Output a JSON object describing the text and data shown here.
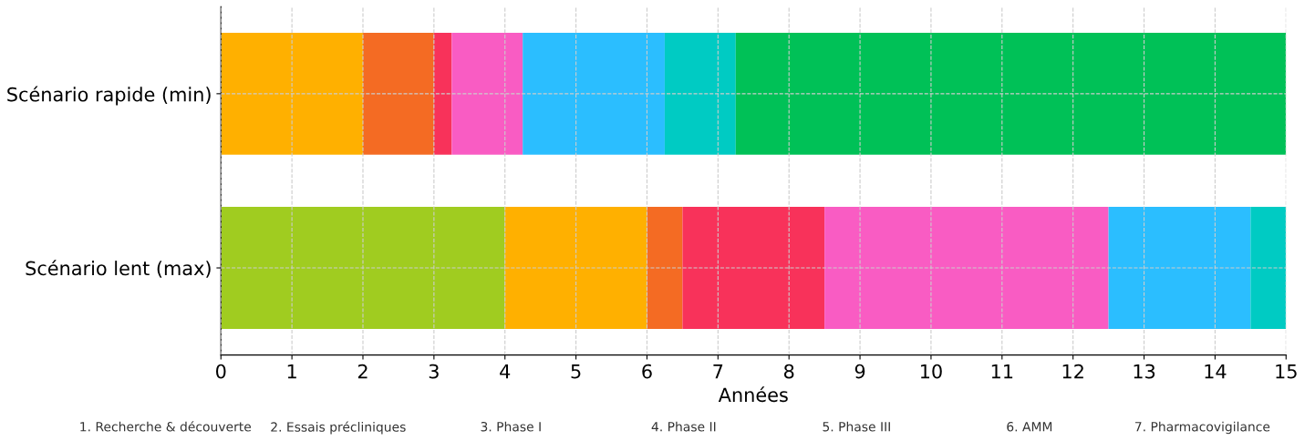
{
  "chart_data": {
    "type": "bar",
    "orientation": "horizontal",
    "stacked": true,
    "categories": [
      "Scénario rapide (min)",
      "Scénario lent (max)"
    ],
    "series": [
      {
        "colors": [
          "#ffb000",
          "#a0cc20"
        ],
        "values": [
          2,
          4
        ]
      },
      {
        "colors": [
          "#f46b23",
          "#ffb000"
        ],
        "values": [
          1,
          2
        ]
      },
      {
        "colors": [
          "#f8325a",
          "#f46b23"
        ],
        "values": [
          0.25,
          0.5
        ]
      },
      {
        "colors": [
          "#f95cc3",
          "#f8325a"
        ],
        "values": [
          1,
          2
        ]
      },
      {
        "colors": [
          "#2bbeff",
          "#f95cc3"
        ],
        "values": [
          2,
          4
        ]
      },
      {
        "colors": [
          "#00cbc3",
          "#2bbeff"
        ],
        "values": [
          1,
          2
        ]
      },
      {
        "colors": [
          "#00c157",
          "#00cbc3"
        ],
        "values": [
          7.75,
          0.5
        ]
      }
    ],
    "xlabel": "Années",
    "xlim": [
      0,
      15
    ],
    "xticks": [
      0,
      1,
      2,
      3,
      4,
      5,
      6,
      7,
      8,
      9,
      10,
      11,
      12,
      13,
      14,
      15
    ],
    "grid": true,
    "annotations": [
      "1. Recherche & découverte",
      "2. Essais précliniques",
      "3. Phase I",
      "4. Phase II",
      "5. Phase III",
      "6. AMM",
      "7. Pharmacovigilance"
    ]
  }
}
